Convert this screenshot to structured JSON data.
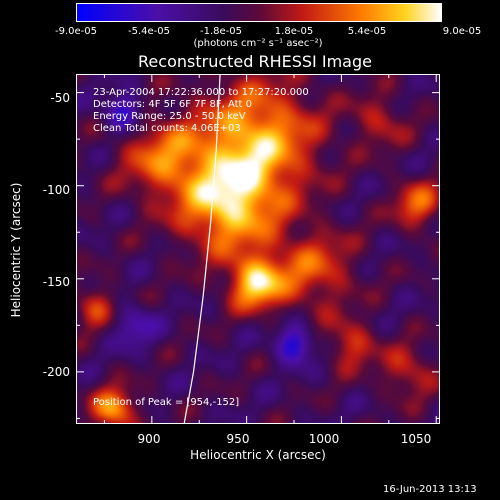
{
  "chart_data": {
    "type": "heatmap",
    "title": "Reconstructed RHESSI Image",
    "xlabel": "Heliocentric X (arcsec)",
    "ylabel": "Heliocentric Y (arcsec)",
    "xlim": [
      860,
      1052
    ],
    "ylim": [
      -228,
      -40
    ],
    "x_ticks": [
      "900",
      "950",
      "1000",
      "1050"
    ],
    "y_ticks": [
      "-50",
      "-100",
      "-150",
      "-200"
    ],
    "colorbar": {
      "ticks": [
        "-9.0e-05",
        "-5.4e-05",
        "-1.8e-05",
        "1.8e-05",
        "5.4e-05",
        "9.0e-05"
      ],
      "units": "(photons cm⁻² s⁻¹ asec⁻²)",
      "range": [
        -9e-05,
        9e-05
      ]
    },
    "annotations": {
      "time": "23-Apr-2004 17:22:36.000 to 17:27:20.000",
      "detectors": "Detectors: 4F 5F 6F 7F 8F, Att 0",
      "energy": "Energy Range: 25.0 - 50.0 keV",
      "clean": "Clean    Total counts: 4.06E+03",
      "peak": "Position of Peak = [954,-152]"
    },
    "peak": [
      954,
      -152
    ],
    "sources": [
      {
        "x": 955,
        "y": -75,
        "sigma": 22,
        "amp": 8e-05
      },
      {
        "x": 940,
        "y": -110,
        "sigma": 18,
        "amp": 8.5e-05
      },
      {
        "x": 955,
        "y": -152,
        "sigma": 10,
        "amp": 9e-05
      },
      {
        "x": 905,
        "y": -85,
        "sigma": 15,
        "amp": 5.5e-05
      },
      {
        "x": 985,
        "y": -145,
        "sigma": 15,
        "amp": 5e-05
      },
      {
        "x": 880,
        "y": -220,
        "sigma": 8,
        "amp": 7.5e-05
      },
      {
        "x": 1040,
        "y": -110,
        "sigma": 9,
        "amp": 5.5e-05
      },
      {
        "x": 1035,
        "y": -200,
        "sigma": 10,
        "amp": 4e-05
      },
      {
        "x": 870,
        "y": -165,
        "sigma": 8,
        "amp": 4.5e-05
      },
      {
        "x": 1005,
        "y": -185,
        "sigma": 9,
        "amp": 4.5e-05
      },
      {
        "x": 1020,
        "y": -65,
        "sigma": 10,
        "amp": 3.5e-05
      },
      {
        "x": 885,
        "y": -60,
        "sigma": 7,
        "amp": -6e-05
      },
      {
        "x": 975,
        "y": -185,
        "sigma": 7,
        "amp": -6.5e-05
      },
      {
        "x": 890,
        "y": -175,
        "sigma": 8,
        "amp": -4e-05
      }
    ],
    "limb": [
      [
        936,
        -40
      ],
      [
        934,
        -80
      ],
      [
        931,
        -120
      ],
      [
        927,
        -160
      ],
      [
        922,
        -200
      ],
      [
        917,
        -228
      ]
    ]
  },
  "timestamp": "16-Jun-2013 13:13"
}
